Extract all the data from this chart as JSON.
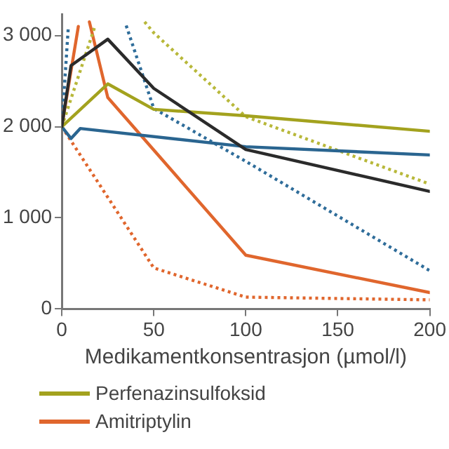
{
  "chart_data": {
    "type": "line",
    "xlabel": "Medikamentkonsentrasjon (µmol/l)",
    "xlim": [
      0,
      200
    ],
    "xticks": [
      0,
      50,
      100,
      150,
      200
    ],
    "ylim": [
      0,
      3230
    ],
    "yticks": [
      0,
      {
        "value": 1000,
        "label": "1 000"
      },
      {
        "value": 2000,
        "label": "2 000"
      },
      {
        "value": 3000,
        "label": "3 000"
      }
    ],
    "grid": false,
    "legend": "bottom",
    "marker": "none",
    "series": [
      {
        "color": "#2b2b2b",
        "line_style": "solid",
        "x": [
          0,
          5,
          25,
          50,
          100,
          200
        ],
        "values": [
          2000,
          2670,
          2960,
          2420,
          1750,
          1290
        ]
      },
      {
        "name": "Perfenazinsulfoksid",
        "color": "#a3a21e",
        "line_style": "solid",
        "x": [
          0,
          25,
          50,
          100,
          200
        ],
        "values": [
          2000,
          2470,
          2190,
          2120,
          1950
        ]
      },
      {
        "color": "#2a6590",
        "line_style": "solid",
        "x": [
          0,
          5,
          10,
          100,
          200
        ],
        "values": [
          2000,
          1870,
          1980,
          1780,
          1690
        ]
      },
      {
        "color": "#b8b83a",
        "line_style": "dotted",
        "x": [
          0,
          18,
          25,
          45,
          50,
          100,
          200
        ],
        "values": [
          2000,
          3100,
          null,
          3150,
          3030,
          2110,
          1370
        ]
      },
      {
        "color": "#2f6d9a",
        "line_style": "dotted",
        "x": [
          0,
          3.5,
          20,
          35,
          50,
          100,
          200
        ],
        "values": [
          2000,
          3080,
          null,
          3110,
          2200,
          1620,
          420
        ]
      },
      {
        "name": "Amitriptylin",
        "color": "#e0662d",
        "line_style": "solid",
        "x": [
          0,
          9,
          12,
          15,
          25,
          100,
          200
        ],
        "values": [
          2000,
          3100,
          null,
          3150,
          2320,
          590,
          180
        ]
      },
      {
        "color": "#e0662d",
        "line_style": "dotted",
        "x": [
          0,
          50,
          100,
          200
        ],
        "values": [
          2000,
          450,
          130,
          100
        ]
      }
    ]
  }
}
